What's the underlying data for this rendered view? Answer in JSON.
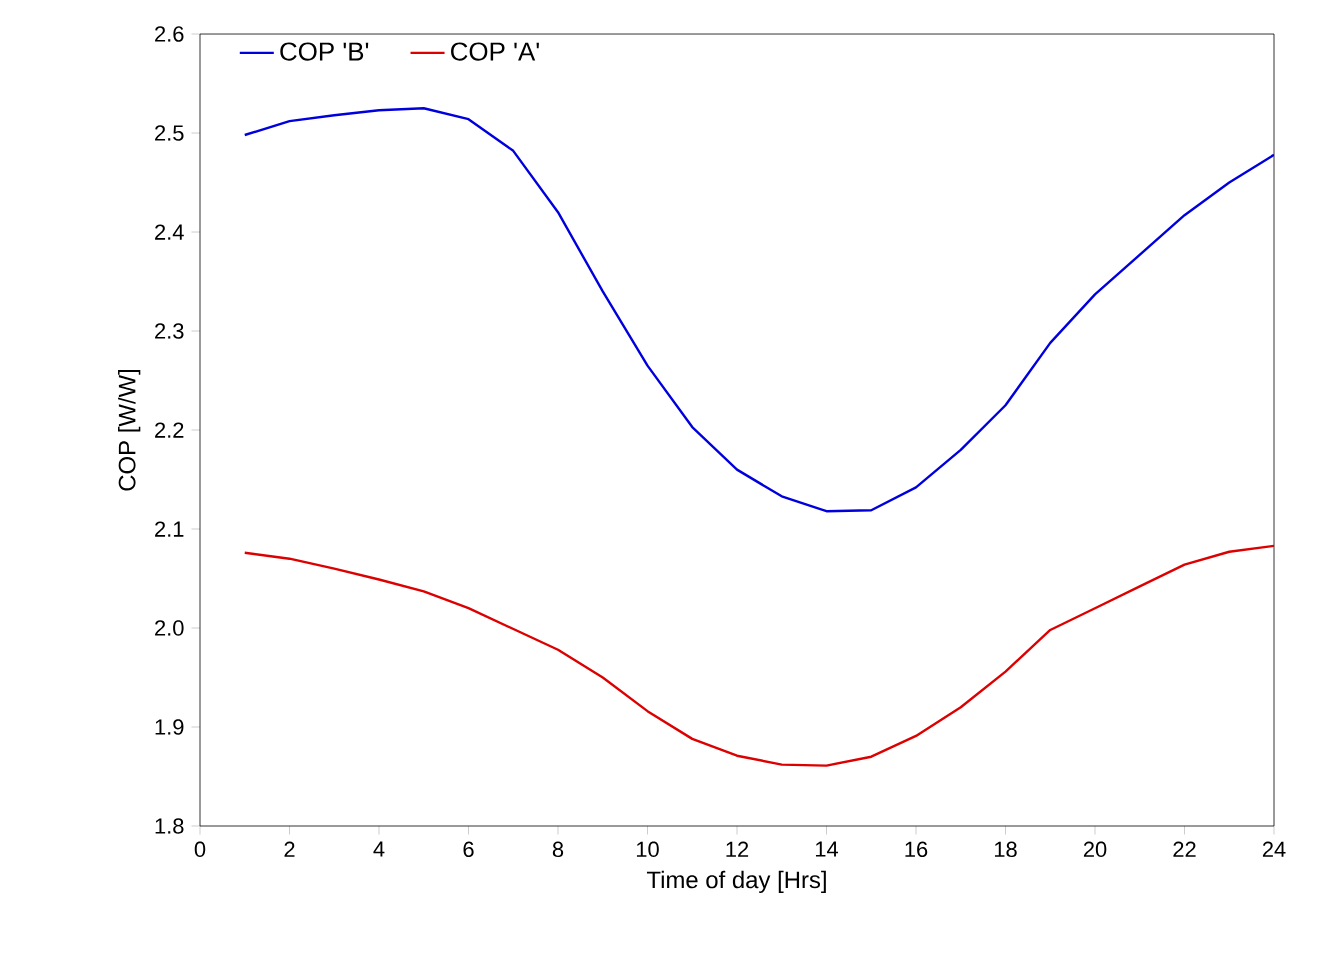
{
  "chart_data": {
    "type": "line",
    "xlabel": "Time of day [Hrs]",
    "ylabel": "COP [W/W]",
    "x": [
      1,
      2,
      3,
      4,
      5,
      6,
      7,
      8,
      9,
      10,
      11,
      12,
      13,
      14,
      15,
      16,
      17,
      18,
      19,
      20,
      21,
      22,
      23,
      24
    ],
    "series": [
      {
        "name": "COP 'B'",
        "color": "#0000dd",
        "values": [
          2.498,
          2.512,
          2.518,
          2.523,
          2.525,
          2.514,
          2.482,
          2.42,
          2.34,
          2.265,
          2.203,
          2.16,
          2.133,
          2.118,
          2.119,
          2.142,
          2.18,
          2.225,
          2.288,
          2.337,
          2.377,
          2.417,
          2.45,
          2.478
        ]
      },
      {
        "name": "COP 'A'",
        "color": "#dd0000",
        "values": [
          2.076,
          2.07,
          2.06,
          2.049,
          2.037,
          2.02,
          1.999,
          1.978,
          1.95,
          1.916,
          1.888,
          1.871,
          1.862,
          1.861,
          1.87,
          1.891,
          1.92,
          1.956,
          1.998,
          2.02,
          2.042,
          2.064,
          2.077,
          2.083
        ]
      }
    ],
    "xlim": [
      0,
      24
    ],
    "xticks": [
      0,
      2,
      4,
      6,
      8,
      10,
      12,
      14,
      16,
      18,
      20,
      22,
      24
    ],
    "ylim": [
      1.8,
      2.6
    ],
    "yticks": [
      1.8,
      1.9,
      {
        "value": 2.0,
        "label": "2.0"
      },
      2.1,
      2.2,
      2.3,
      2.4,
      2.5,
      2.6
    ],
    "legend": "top left",
    "grid": false,
    "marker": "none",
    "line_style": "solid"
  }
}
